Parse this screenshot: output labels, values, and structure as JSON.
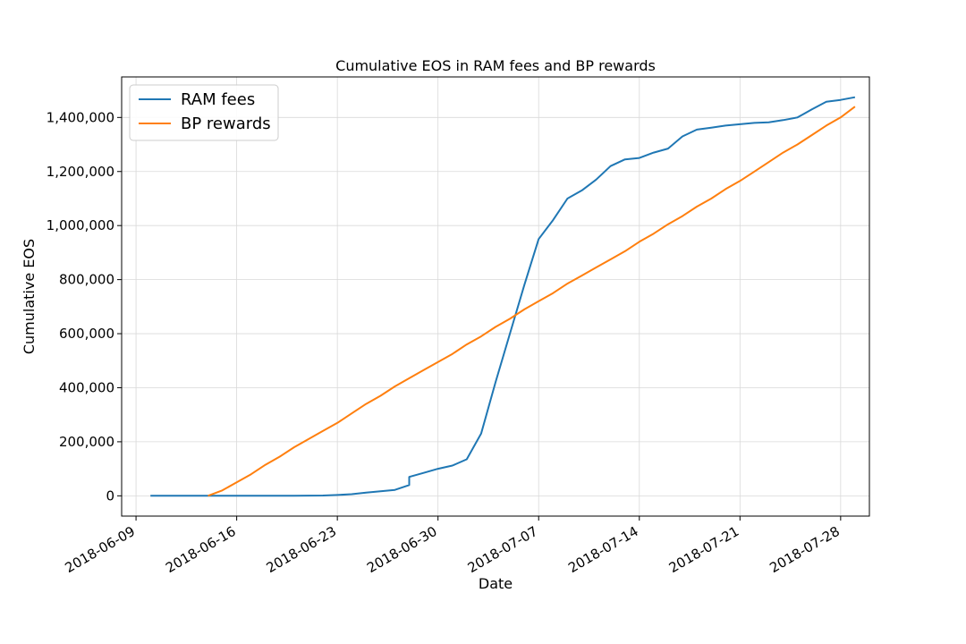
{
  "chart_data": {
    "type": "line",
    "title": "Cumulative EOS in RAM fees and BP rewards",
    "xlabel": "Date",
    "ylabel": "Cumulative EOS",
    "xlim": [
      "2018-06-08",
      "2018-07-30"
    ],
    "ylim": [
      -75000,
      1550000
    ],
    "x_ticks": [
      "2018-06-09",
      "2018-06-16",
      "2018-06-23",
      "2018-06-30",
      "2018-07-07",
      "2018-07-14",
      "2018-07-21",
      "2018-07-28"
    ],
    "y_ticks": [
      0,
      200000,
      400000,
      600000,
      800000,
      1000000,
      1200000,
      1400000
    ],
    "y_tick_labels": [
      "0",
      "200,000",
      "400,000",
      "600,000",
      "800,000",
      "1,000,000",
      "1,200,000",
      "1,400,000"
    ],
    "grid": true,
    "legend_position": "top-left",
    "series": [
      {
        "name": "RAM fees",
        "color": "#1f77b4",
        "points": [
          [
            "2018-06-10",
            0
          ],
          [
            "2018-06-15",
            0
          ],
          [
            "2018-06-20",
            0
          ],
          [
            "2018-06-22",
            1000
          ],
          [
            "2018-06-23",
            3000
          ],
          [
            "2018-06-24",
            6000
          ],
          [
            "2018-06-25",
            12000
          ],
          [
            "2018-06-26",
            17000
          ],
          [
            "2018-06-27",
            22000
          ],
          [
            "2018-06-28",
            40000
          ],
          [
            "2018-06-28",
            70000
          ],
          [
            "2018-06-29",
            85000
          ],
          [
            "2018-06-30",
            100000
          ],
          [
            "2018-07-01",
            112000
          ],
          [
            "2018-07-02",
            135000
          ],
          [
            "2018-07-03",
            230000
          ],
          [
            "2018-07-04",
            420000
          ],
          [
            "2018-07-05",
            600000
          ],
          [
            "2018-07-06",
            780000
          ],
          [
            "2018-07-07",
            950000
          ],
          [
            "2018-07-08",
            1020000
          ],
          [
            "2018-07-09",
            1100000
          ],
          [
            "2018-07-10",
            1130000
          ],
          [
            "2018-07-11",
            1170000
          ],
          [
            "2018-07-12",
            1220000
          ],
          [
            "2018-07-13",
            1245000
          ],
          [
            "2018-07-14",
            1250000
          ],
          [
            "2018-07-15",
            1270000
          ],
          [
            "2018-07-16",
            1285000
          ],
          [
            "2018-07-17",
            1330000
          ],
          [
            "2018-07-18",
            1355000
          ],
          [
            "2018-07-19",
            1362000
          ],
          [
            "2018-07-20",
            1370000
          ],
          [
            "2018-07-21",
            1375000
          ],
          [
            "2018-07-22",
            1380000
          ],
          [
            "2018-07-23",
            1382000
          ],
          [
            "2018-07-24",
            1390000
          ],
          [
            "2018-07-25",
            1400000
          ],
          [
            "2018-07-26",
            1430000
          ],
          [
            "2018-07-27",
            1458000
          ],
          [
            "2018-07-28",
            1465000
          ],
          [
            "2018-07-29",
            1475000
          ]
        ]
      },
      {
        "name": "BP rewards",
        "color": "#ff7f0e",
        "points": [
          [
            "2018-06-14",
            0
          ],
          [
            "2018-06-15",
            20000
          ],
          [
            "2018-06-16",
            50000
          ],
          [
            "2018-06-17",
            80000
          ],
          [
            "2018-06-18",
            115000
          ],
          [
            "2018-06-19",
            145000
          ],
          [
            "2018-06-20",
            180000
          ],
          [
            "2018-06-21",
            210000
          ],
          [
            "2018-06-22",
            240000
          ],
          [
            "2018-06-23",
            270000
          ],
          [
            "2018-06-24",
            305000
          ],
          [
            "2018-06-25",
            340000
          ],
          [
            "2018-06-26",
            370000
          ],
          [
            "2018-06-27",
            405000
          ],
          [
            "2018-06-28",
            435000
          ],
          [
            "2018-06-29",
            465000
          ],
          [
            "2018-06-30",
            495000
          ],
          [
            "2018-07-01",
            525000
          ],
          [
            "2018-07-02",
            560000
          ],
          [
            "2018-07-03",
            590000
          ],
          [
            "2018-07-04",
            625000
          ],
          [
            "2018-07-05",
            655000
          ],
          [
            "2018-07-06",
            690000
          ],
          [
            "2018-07-07",
            720000
          ],
          [
            "2018-07-08",
            750000
          ],
          [
            "2018-07-09",
            785000
          ],
          [
            "2018-07-10",
            815000
          ],
          [
            "2018-07-11",
            845000
          ],
          [
            "2018-07-12",
            875000
          ],
          [
            "2018-07-13",
            905000
          ],
          [
            "2018-07-14",
            940000
          ],
          [
            "2018-07-15",
            970000
          ],
          [
            "2018-07-16",
            1005000
          ],
          [
            "2018-07-17",
            1035000
          ],
          [
            "2018-07-18",
            1070000
          ],
          [
            "2018-07-19",
            1100000
          ],
          [
            "2018-07-20",
            1135000
          ],
          [
            "2018-07-21",
            1165000
          ],
          [
            "2018-07-22",
            1200000
          ],
          [
            "2018-07-23",
            1235000
          ],
          [
            "2018-07-24",
            1270000
          ],
          [
            "2018-07-25",
            1300000
          ],
          [
            "2018-07-26",
            1335000
          ],
          [
            "2018-07-27",
            1370000
          ],
          [
            "2018-07-28",
            1400000
          ],
          [
            "2018-07-29",
            1440000
          ]
        ]
      }
    ]
  }
}
